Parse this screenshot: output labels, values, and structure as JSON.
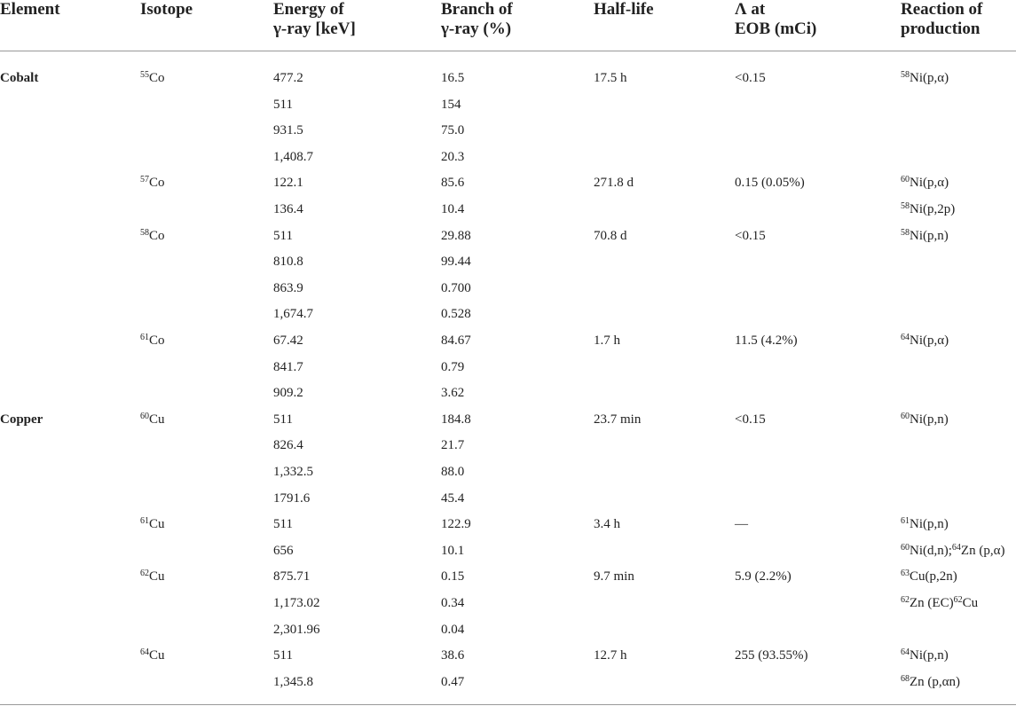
{
  "table": {
    "headers": [
      [
        "Element"
      ],
      [
        "Isotope"
      ],
      [
        "Energy of",
        "γ-ray [keV]"
      ],
      [
        "Branch of",
        "γ-ray (%)"
      ],
      [
        "Half-life"
      ],
      [
        "Λ at",
        "EOB (mCi)"
      ],
      [
        "Reaction of",
        "production"
      ]
    ],
    "rows": [
      [
        "Cobalt",
        [
          {
            "sup": "55",
            "text": "Co"
          }
        ],
        "477.2",
        "16.5",
        "17.5 h",
        "<0.15",
        [
          {
            "sup": "58",
            "text": "Ni(p,α)"
          }
        ]
      ],
      [
        null,
        null,
        "511",
        "154",
        null,
        null,
        null
      ],
      [
        null,
        null,
        "931.5",
        "75.0",
        null,
        null,
        null
      ],
      [
        null,
        null,
        "1,408.7",
        "20.3",
        null,
        null,
        null
      ],
      [
        null,
        [
          {
            "sup": "57",
            "text": "Co"
          }
        ],
        "122.1",
        "85.6",
        "271.8 d",
        "0.15 (0.05%)",
        [
          {
            "sup": "60",
            "text": "Ni(p,α)"
          }
        ]
      ],
      [
        null,
        null,
        "136.4",
        "10.4",
        null,
        null,
        [
          {
            "sup": "58",
            "text": "Ni(p,2p)"
          }
        ]
      ],
      [
        null,
        [
          {
            "sup": "58",
            "text": "Co"
          }
        ],
        "511",
        "29.88",
        "70.8 d",
        "<0.15",
        [
          {
            "sup": "58",
            "text": "Ni(p,n)"
          }
        ]
      ],
      [
        null,
        null,
        "810.8",
        "99.44",
        null,
        null,
        null
      ],
      [
        null,
        null,
        "863.9",
        "0.700",
        null,
        null,
        null
      ],
      [
        null,
        null,
        "1,674.7",
        "0.528",
        null,
        null,
        null
      ],
      [
        null,
        [
          {
            "sup": "61",
            "text": "Co"
          }
        ],
        "67.42",
        "84.67",
        "1.7 h",
        "11.5 (4.2%)",
        [
          {
            "sup": "64",
            "text": "Ni(p,α)"
          }
        ]
      ],
      [
        null,
        null,
        "841.7",
        "0.79",
        null,
        null,
        null
      ],
      [
        null,
        null,
        "909.2",
        "3.62",
        null,
        null,
        null
      ],
      [
        "Copper",
        [
          {
            "sup": "60",
            "text": "Cu"
          }
        ],
        "511",
        "184.8",
        "23.7 min",
        "<0.15",
        [
          {
            "sup": "60",
            "text": "Ni(p,n)"
          }
        ]
      ],
      [
        null,
        null,
        "826.4",
        "21.7",
        null,
        null,
        null
      ],
      [
        null,
        null,
        "1,332.5",
        "88.0",
        null,
        null,
        null
      ],
      [
        null,
        null,
        "1791.6",
        "45.4",
        null,
        null,
        null
      ],
      [
        null,
        [
          {
            "sup": "61",
            "text": "Cu"
          }
        ],
        "511",
        "122.9",
        "3.4 h",
        "—",
        [
          {
            "sup": "61",
            "text": "Ni(p,n)"
          }
        ]
      ],
      [
        null,
        null,
        "656",
        "10.1",
        null,
        null,
        [
          {
            "sup": "60",
            "text": "Ni(d,n);"
          },
          {
            "sup": "64",
            "text": "Zn (p,α)"
          }
        ]
      ],
      [
        null,
        [
          {
            "sup": "62",
            "text": "Cu"
          }
        ],
        "875.71",
        "0.15",
        "9.7 min",
        "5.9 (2.2%)",
        [
          {
            "sup": "63",
            "text": "Cu(p,2n)"
          }
        ]
      ],
      [
        null,
        null,
        "1,173.02",
        "0.34",
        null,
        null,
        [
          {
            "sup": "62",
            "text": "Zn (EC)"
          },
          {
            "sup": "62",
            "text": "Cu"
          }
        ]
      ],
      [
        null,
        null,
        "2,301.96",
        "0.04",
        null,
        null,
        null
      ],
      [
        null,
        [
          {
            "sup": "64",
            "text": "Cu"
          }
        ],
        "511",
        "38.6",
        "12.7 h",
        "255 (93.55%)",
        [
          {
            "sup": "64",
            "text": "Ni(p,n)"
          }
        ]
      ],
      [
        null,
        null,
        "1,345.8",
        "0.47",
        null,
        null,
        [
          {
            "sup": "68",
            "text": "Zn (p,αn)"
          }
        ]
      ]
    ]
  }
}
